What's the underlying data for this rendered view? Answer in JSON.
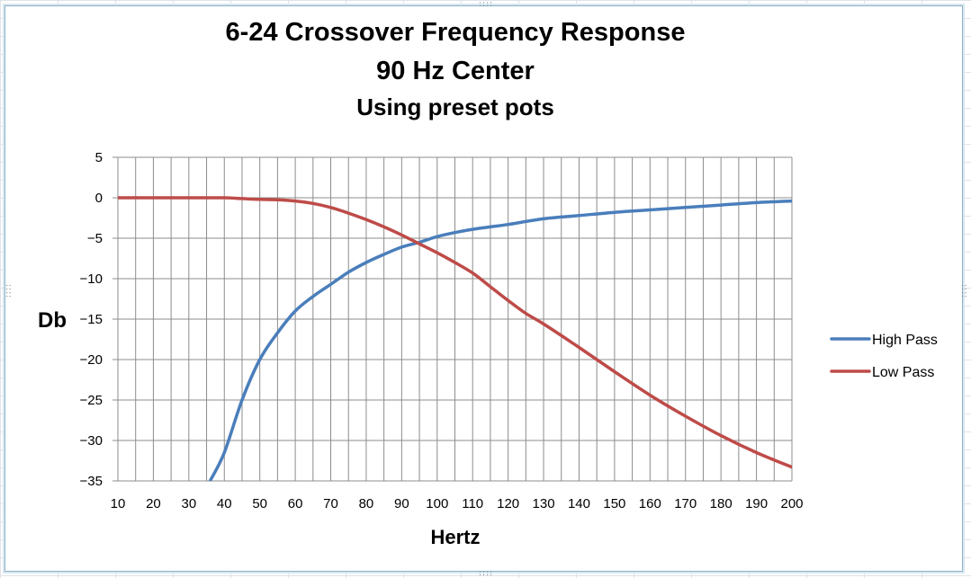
{
  "chart_data": {
    "type": "line",
    "title": "6-24 Crossover Frequency Response",
    "subtitle": "90 Hz Center",
    "subtitle2": "Using preset pots",
    "xlabel": "Hertz",
    "ylabel": "Db",
    "xlim": [
      10,
      200
    ],
    "ylim": [
      -35,
      5
    ],
    "xticks": [
      10,
      20,
      30,
      40,
      50,
      60,
      70,
      80,
      90,
      100,
      110,
      120,
      130,
      140,
      150,
      160,
      170,
      180,
      190,
      200
    ],
    "yticks": [
      5,
      0,
      -5,
      -10,
      -15,
      -20,
      -25,
      -30,
      -35
    ],
    "grid": true,
    "legend_position": "right",
    "series": [
      {
        "name": "High Pass",
        "color": "#4a7ebb",
        "x": [
          36,
          40,
          45,
          50,
          55,
          60,
          65,
          70,
          75,
          80,
          85,
          90,
          95,
          100,
          105,
          110,
          115,
          120,
          130,
          140,
          150,
          160,
          170,
          180,
          190,
          200
        ],
        "y": [
          -35,
          -31.5,
          -25,
          -20,
          -16.7,
          -14,
          -12.2,
          -10.7,
          -9.2,
          -8,
          -7,
          -6.1,
          -5.5,
          -4.8,
          -4.3,
          -3.9,
          -3.6,
          -3.3,
          -2.6,
          -2.2,
          -1.8,
          -1.5,
          -1.2,
          -0.9,
          -0.6,
          -0.4
        ]
      },
      {
        "name": "Low Pass",
        "color": "#be4b48",
        "x": [
          10,
          20,
          30,
          40,
          45,
          50,
          55,
          60,
          65,
          70,
          75,
          80,
          85,
          90,
          95,
          100,
          105,
          110,
          115,
          120,
          125,
          130,
          140,
          150,
          160,
          170,
          180,
          190,
          200
        ],
        "y": [
          0,
          0,
          0,
          0,
          -0.1,
          -0.2,
          -0.25,
          -0.4,
          -0.7,
          -1.2,
          -1.9,
          -2.7,
          -3.6,
          -4.6,
          -5.7,
          -6.8,
          -8,
          -9.3,
          -11,
          -12.7,
          -14.3,
          -15.6,
          -18.5,
          -21.5,
          -24.4,
          -27,
          -29.4,
          -31.5,
          -33.3
        ]
      }
    ]
  }
}
